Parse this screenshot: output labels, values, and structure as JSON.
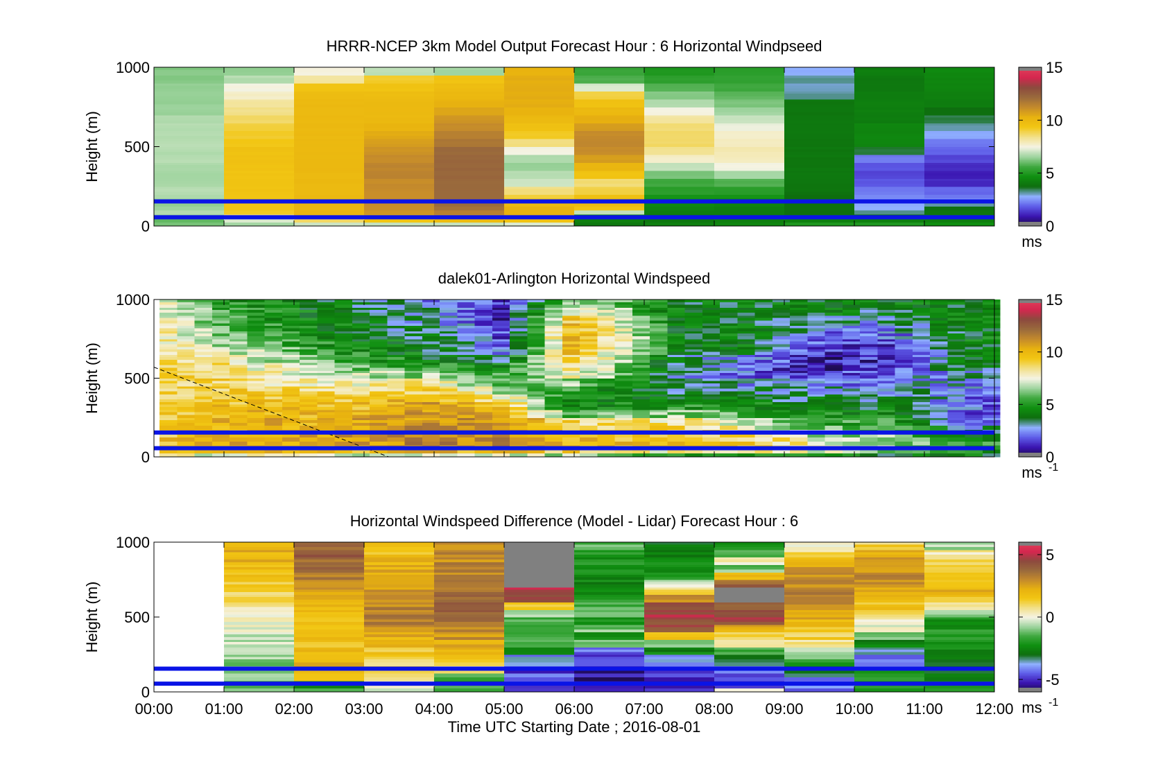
{
  "figure": {
    "xlabel": "Time UTC  Starting Date ; 2016-08-01",
    "xticks": [
      "00:00",
      "01:00",
      "02:00",
      "03:00",
      "04:00",
      "05:00",
      "06:00",
      "07:00",
      "08:00",
      "09:00",
      "10:00",
      "11:00",
      "12:00"
    ],
    "ylabel": "Height (m)",
    "yticks": [
      "0",
      "500",
      "1000"
    ]
  },
  "colormap": {
    "stops": [
      "#1a0b45",
      "#3a14b0",
      "#5e5ce8",
      "#8fb0ff",
      "#0e6e0e",
      "#0f8f10",
      "#3fa83f",
      "#9fd49f",
      "#f5f3e4",
      "#f2e08a",
      "#f2c613",
      "#e8b20f",
      "#c48a2c",
      "#9a6a3c",
      "#8c4a3e",
      "#d4274f",
      "#e0405a"
    ]
  },
  "chart_data": [
    {
      "type": "heatmap",
      "title": "HRRR-NCEP 3km Model Output   Forecast Hour : 6 Horizontal Windpseed",
      "xlabel": "",
      "ylabel": "Height (m)",
      "xlim": [
        0,
        12
      ],
      "ylim": [
        0,
        1000
      ],
      "clim": [
        0,
        15
      ],
      "colorbar_ticks": [
        "0",
        "5",
        "10",
        "15"
      ],
      "colorbar_unit": "ms",
      "unit_superscript": "",
      "x_columns": 12,
      "height_levels": [
        0,
        25,
        50,
        75,
        100,
        125,
        150,
        175,
        200,
        250,
        300,
        350,
        400,
        450,
        500,
        550,
        600,
        650,
        700,
        750,
        800,
        850,
        900,
        950,
        1000
      ],
      "values": [
        [
          6.2,
          6.0,
          6.5,
          6.8,
          6.6,
          6.5,
          6.6,
          6.7,
          6.8,
          6.7,
          6.6,
          6.7,
          6.8,
          6.8,
          6.8,
          6.8,
          6.8,
          6.8,
          6.5,
          6.5,
          6.5,
          6.5,
          6.3,
          6.3
        ],
        [
          6.6,
          7.2,
          8.5,
          9.2,
          9.4,
          9.5,
          9.5,
          9.5,
          9.5,
          9.5,
          9.5,
          9.6,
          9.6,
          9.6,
          9.4,
          9.2,
          9.0,
          8.7,
          8.4,
          8.2,
          7.8,
          7.5,
          6.8,
          6.5
        ],
        [
          7.0,
          8.8,
          9.8,
          10.2,
          10.2,
          10.2,
          10.0,
          10.0,
          10.0,
          10.0,
          10.0,
          10.0,
          10.0,
          10.0,
          10.0,
          10.0,
          10.0,
          10.0,
          10.0,
          10.0,
          9.8,
          9.5,
          8.2,
          7.6
        ],
        [
          7.0,
          9.4,
          10.6,
          11.0,
          11.2,
          11.2,
          11.2,
          11.2,
          11.2,
          11.2,
          11.4,
          11.4,
          11.2,
          11.0,
          10.8,
          10.5,
          10.2,
          10.0,
          10.0,
          10.0,
          9.8,
          9.5,
          9.2,
          6.9
        ],
        [
          7.0,
          9.8,
          11.2,
          11.6,
          12.0,
          12.1,
          12.2,
          12.2,
          12.2,
          12.2,
          12.3,
          12.3,
          12.3,
          12.2,
          11.8,
          11.5,
          11.2,
          11.0,
          10.6,
          10.3,
          10.0,
          9.8,
          9.5,
          6.6
        ],
        [
          7.2,
          9.5,
          10.3,
          10.3,
          10.2,
          10.0,
          9.6,
          9.0,
          8.5,
          7.0,
          6.8,
          6.5,
          6.8,
          7.5,
          8.5,
          9.2,
          9.6,
          10.0,
          10.2,
          10.4,
          10.4,
          10.4,
          10.4,
          10.2
        ],
        [
          4.0,
          4.2,
          4.6,
          7.0,
          9.5,
          10.0,
          10.0,
          9.6,
          9.0,
          8.6,
          9.5,
          10.2,
          10.8,
          11.2,
          11.3,
          11.2,
          10.8,
          10.4,
          10.0,
          9.6,
          9.0,
          7.2,
          5.8,
          5.5
        ],
        [
          4.2,
          4.0,
          4.0,
          4.2,
          4.3,
          4.5,
          4.6,
          4.8,
          5.2,
          5.6,
          6.2,
          7.0,
          7.8,
          8.4,
          8.7,
          8.7,
          8.6,
          8.2,
          7.5,
          6.8,
          6.3,
          5.8,
          5.3,
          5.0
        ],
        [
          4.5,
          4.2,
          4.1,
          4.1,
          4.2,
          4.3,
          4.5,
          4.8,
          5.2,
          5.8,
          6.6,
          7.5,
          7.9,
          8.0,
          7.9,
          7.8,
          7.4,
          7.0,
          6.6,
          6.2,
          5.9,
          5.6,
          5.3,
          5.2
        ],
        [
          5.0,
          4.2,
          4.0,
          3.8,
          3.8,
          3.8,
          3.8,
          3.8,
          3.9,
          4.0,
          4.0,
          4.0,
          4.0,
          4.0,
          4.0,
          4.0,
          4.0,
          4.0,
          4.0,
          4.0,
          3.2,
          3.0,
          3.2,
          2.8
        ],
        [
          5.0,
          4.2,
          3.8,
          3.2,
          2.8,
          2.8,
          2.6,
          2.4,
          2.2,
          1.8,
          1.6,
          1.8,
          2.2,
          3.6,
          4.4,
          4.4,
          4.4,
          4.2,
          4.2,
          4.2,
          4.2,
          4.0,
          4.0,
          4.2
        ],
        [
          4.6,
          4.2,
          4.0,
          4.0,
          3.8,
          3.2,
          2.6,
          2.2,
          2.0,
          1.2,
          1.0,
          1.2,
          1.6,
          2.0,
          2.2,
          2.8,
          3.2,
          3.5,
          3.8,
          4.2,
          4.3,
          4.4,
          4.4,
          4.5
        ]
      ],
      "lines": [
        {
          "name": "",
          "color": "#0a14e6",
          "y": 55
        },
        {
          "name": "",
          "color": "#0a14e6",
          "y": 155
        }
      ]
    },
    {
      "type": "heatmap",
      "title": "dalek01-Arlington  Horizontal Windspeed",
      "xlabel": "",
      "ylabel": "Height (m)",
      "xlim": [
        0,
        12
      ],
      "ylim": [
        0,
        1000
      ],
      "clim": [
        0,
        15
      ],
      "colorbar_ticks": [
        "0",
        "5",
        "10",
        "15"
      ],
      "colorbar_unit": "ms",
      "unit_superscript": "-1",
      "x_start": 0.08,
      "x_step": 0.25,
      "height_levels": [
        0,
        25,
        50,
        75,
        100,
        125,
        150,
        175,
        200,
        250,
        300,
        350,
        400,
        450,
        500,
        550,
        600,
        650,
        700,
        750,
        800,
        850,
        900,
        950,
        1000
      ],
      "keyframes": [
        {
          "t": 0.1,
          "v": [
            7.5,
            9.0,
            9.5,
            9.6,
            9.6,
            9.5,
            9.5,
            9.4,
            9.3,
            9.2,
            9.1,
            9.0,
            8.9,
            8.8,
            8.8,
            8.7,
            8.6,
            8.5,
            8.4,
            8.3,
            8.2,
            8.1,
            8.0,
            8.0
          ]
        },
        {
          "t": 1.0,
          "v": [
            7.5,
            9.5,
            10.0,
            10.2,
            10.2,
            10.2,
            10.1,
            10.0,
            10.0,
            9.8,
            9.6,
            9.4,
            9.2,
            9.0,
            8.8,
            8.5,
            8.0,
            7.4,
            6.8,
            6.2,
            5.8,
            5.5,
            5.2,
            5.0
          ]
        },
        {
          "t": 2.5,
          "v": [
            7.0,
            9.8,
            10.3,
            10.5,
            10.6,
            10.6,
            10.5,
            10.4,
            10.3,
            10.0,
            9.6,
            9.2,
            8.6,
            7.8,
            7.0,
            6.4,
            5.8,
            5.2,
            4.8,
            4.6,
            4.5,
            4.4,
            4.3,
            4.2
          ]
        },
        {
          "t": 4.0,
          "v": [
            7.0,
            10.0,
            11.0,
            11.5,
            11.6,
            11.5,
            11.4,
            11.2,
            11.0,
            10.8,
            10.6,
            10.2,
            9.2,
            8.0,
            6.5,
            5.0,
            4.2,
            4.0,
            4.0,
            3.6,
            3.2,
            3.0,
            2.8,
            2.6
          ]
        },
        {
          "t": 5.0,
          "v": [
            7.0,
            10.0,
            11.0,
            11.4,
            11.4,
            11.3,
            11.2,
            11.0,
            10.8,
            10.4,
            9.6,
            8.2,
            6.8,
            5.8,
            5.2,
            4.6,
            3.6,
            2.6,
            2.0,
            1.6,
            1.4,
            1.2,
            1.2,
            1.2
          ]
        },
        {
          "t": 6.0,
          "v": [
            6.5,
            9.0,
            10.0,
            10.0,
            9.8,
            9.6,
            9.4,
            9.2,
            8.8,
            5.6,
            4.2,
            4.6,
            5.2,
            6.4,
            8.0,
            8.8,
            9.4,
            9.8,
            10.2,
            10.4,
            10.2,
            9.8,
            8.4,
            7.2
          ]
        },
        {
          "t": 7.5,
          "v": [
            4.5,
            8.0,
            9.2,
            9.4,
            9.4,
            9.2,
            9.0,
            8.8,
            8.2,
            6.5,
            5.0,
            4.0,
            3.6,
            3.2,
            3.0,
            3.2,
            3.5,
            4.0,
            4.2,
            4.2,
            4.2,
            4.1,
            4.0,
            4.0
          ]
        },
        {
          "t": 8.5,
          "v": [
            5.0,
            8.5,
            9.0,
            9.2,
            9.0,
            8.6,
            8.2,
            7.8,
            7.0,
            5.5,
            4.4,
            4.0,
            3.4,
            2.6,
            2.0,
            1.8,
            2.4,
            3.8,
            4.2,
            4.2,
            4.2,
            4.0,
            4.0,
            4.0
          ]
        },
        {
          "t": 9.5,
          "v": [
            4.5,
            7.5,
            8.0,
            7.6,
            7.2,
            6.8,
            6.5,
            6.0,
            5.5,
            4.8,
            4.2,
            3.6,
            3.0,
            2.2,
            1.4,
            1.0,
            1.0,
            1.2,
            1.6,
            2.0,
            2.8,
            3.4,
            4.0,
            4.2
          ]
        },
        {
          "t": 10.5,
          "v": [
            4.2,
            6.5,
            6.8,
            6.6,
            6.4,
            6.2,
            6.0,
            5.6,
            5.2,
            4.5,
            4.0,
            3.6,
            3.2,
            2.6,
            2.0,
            1.6,
            1.4,
            1.4,
            1.6,
            2.0,
            2.4,
            3.0,
            3.6,
            4.0
          ]
        },
        {
          "t": 11.6,
          "v": [
            4.0,
            4.5,
            4.8,
            5.0,
            4.6,
            4.2,
            3.8,
            3.2,
            2.4,
            2.0,
            2.0,
            2.2,
            2.4,
            2.6,
            3.0,
            3.6,
            4.0,
            4.2,
            4.3,
            4.3,
            4.3,
            4.3,
            4.3,
            4.3
          ]
        }
      ],
      "dashed_line": {
        "x": [
          0.0,
          3.35
        ],
        "y": [
          570,
          0
        ]
      },
      "lines": [
        {
          "name": "",
          "color": "#0a14e6",
          "y": 55
        },
        {
          "name": "",
          "color": "#0a14e6",
          "y": 155
        }
      ]
    },
    {
      "type": "heatmap",
      "title": "Horizontal Windspeed Difference (Model - Lidar) Forecast Hour : 6",
      "xlabel": "Time UTC  Starting Date ; 2016-08-01",
      "ylabel": "Height (m)",
      "xlim": [
        0,
        12
      ],
      "ylim": [
        0,
        1000
      ],
      "clim": [
        -6,
        6
      ],
      "colorbar_ticks": [
        "-5",
        "0",
        "5"
      ],
      "colorbar_unit": "ms",
      "unit_superscript": "-1",
      "x_columns": 12,
      "height_levels": [
        0,
        25,
        50,
        75,
        100,
        125,
        150,
        175,
        200,
        250,
        300,
        350,
        400,
        450,
        500,
        550,
        600,
        650,
        700,
        750,
        800,
        850,
        900,
        950,
        1000
      ],
      "values": [
        [
          null,
          null,
          null,
          null,
          null,
          null,
          null,
          null,
          null,
          null,
          null,
          null,
          null,
          null,
          null,
          null,
          null,
          null,
          null,
          null,
          null,
          null,
          null,
          null
        ],
        [
          -1.0,
          -1.6,
          -1.6,
          -1.2,
          -1.2,
          -1.0,
          -0.9,
          -0.8,
          -0.8,
          -0.6,
          -0.4,
          -0.2,
          0.0,
          0.2,
          0.4,
          0.6,
          0.8,
          1.0,
          1.2,
          1.5,
          1.8,
          2.0,
          2.2,
          2.4
        ],
        [
          -1.8,
          -2.0,
          -2.0,
          1.8,
          2.0,
          2.2,
          2.2,
          2.2,
          2.2,
          2.0,
          1.8,
          1.6,
          1.6,
          1.6,
          1.8,
          2.0,
          2.4,
          2.8,
          3.2,
          3.4,
          3.6,
          3.8,
          4.0,
          4.0
        ],
        [
          -0.2,
          0.2,
          0.4,
          0.8,
          1.2,
          1.2,
          1.0,
          1.0,
          1.2,
          1.4,
          1.8,
          2.2,
          2.8,
          3.2,
          3.4,
          3.2,
          3.0,
          2.8,
          2.6,
          2.4,
          2.2,
          2.0,
          1.8,
          1.8
        ],
        [
          -1.5,
          -1.5,
          -2.0,
          -1.2,
          -0.8,
          0.4,
          0.8,
          1.2,
          1.6,
          2.0,
          2.4,
          2.8,
          3.2,
          3.6,
          3.8,
          3.8,
          3.6,
          3.6,
          3.4,
          3.2,
          3.2,
          3.0,
          3.0,
          2.8
        ],
        [
          -5.0,
          -5.0,
          -4.8,
          -4.6,
          -4.6,
          -4.8,
          -4.4,
          -4.2,
          -4.0,
          -3.0,
          -1.6,
          -1.4,
          -1.2,
          -1.4,
          -0.8,
          1.0,
          4.4,
          5.0,
          null,
          null,
          null,
          null,
          null,
          null
        ],
        [
          -5.5,
          -5.6,
          -5.6,
          -5.4,
          -5.4,
          -5.2,
          -5.0,
          -4.8,
          -4.6,
          -4.4,
          -1.2,
          -2.0,
          -1.0,
          -2.2,
          -1.4,
          -1.6,
          -2.0,
          -2.2,
          -2.4,
          -2.4,
          -2.2,
          -2.0,
          -1.6,
          -1.2
        ],
        [
          -5.4,
          -5.4,
          -5.3,
          -5.2,
          -5.0,
          -4.8,
          -4.6,
          -4.4,
          -4.0,
          -2.5,
          -1.0,
          2.0,
          4.4,
          4.6,
          4.6,
          4.4,
          3.0,
          1.0,
          -0.4,
          -1.6,
          -2.4,
          -2.4,
          -2.6,
          -2.6
        ],
        [
          0.6,
          -5.2,
          -5.2,
          -5.0,
          -4.8,
          -4.4,
          -4.0,
          -3.6,
          -3.0,
          -1.5,
          0.2,
          1.2,
          2.2,
          4.4,
          4.6,
          4.2,
          null,
          null,
          4.0,
          1.8,
          -1.2,
          0.4,
          -1.8,
          -2.2
        ],
        [
          -4.4,
          -4.2,
          -4.0,
          -4.2,
          -3.6,
          -3.2,
          -2.4,
          -1.8,
          -1.4,
          -0.4,
          0.4,
          1.2,
          1.8,
          2.2,
          2.6,
          2.8,
          3.0,
          3.2,
          3.2,
          3.0,
          2.6,
          1.8,
          0.8,
          0.2
        ],
        [
          -2.0,
          -2.2,
          -2.4,
          -2.2,
          -2.0,
          -1.8,
          -3.6,
          -4.2,
          -4.4,
          -3.6,
          -2.4,
          -1.0,
          -0.2,
          0.4,
          1.0,
          1.6,
          2.0,
          2.6,
          2.8,
          3.0,
          2.8,
          2.4,
          2.0,
          1.2
        ],
        [
          -2.4,
          -2.4,
          -2.4,
          -2.4,
          -2.6,
          -2.8,
          -3.0,
          -3.0,
          -2.8,
          -2.6,
          -2.4,
          -2.2,
          -2.0,
          -2.0,
          -0.8,
          1.0,
          1.8,
          2.0,
          1.8,
          1.8,
          1.6,
          1.2,
          0.4,
          -0.6
        ]
      ],
      "lines": [
        {
          "name": "",
          "color": "#0a14e6",
          "y": 55
        },
        {
          "name": "",
          "color": "#0a14e6",
          "y": 155
        }
      ]
    }
  ]
}
